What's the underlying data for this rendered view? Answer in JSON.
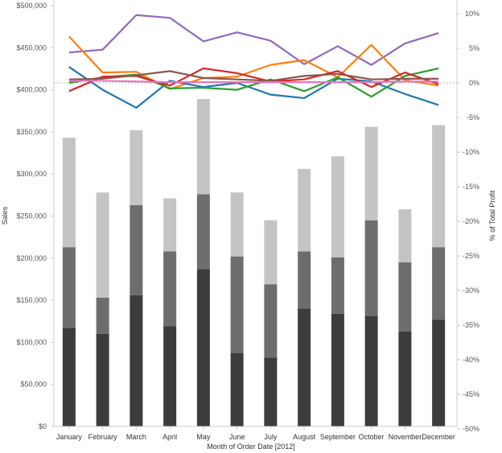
{
  "chart_data": {
    "type": "bar+line",
    "xlabel": "Month of Order Date [2012]",
    "ylabel": "Sales",
    "y2label": "% of Total Profit",
    "categories": [
      "January",
      "February",
      "March",
      "April",
      "May",
      "June",
      "July",
      "August",
      "September",
      "October",
      "November",
      "December"
    ],
    "ylim": [
      0,
      500000
    ],
    "yticks": [
      0,
      50000,
      100000,
      150000,
      200000,
      250000,
      300000,
      350000,
      400000,
      450000,
      500000
    ],
    "ytick_labels": [
      "$0",
      "$50,000",
      "$100,000",
      "$150,000",
      "$200,000",
      "$250,000",
      "$300,000",
      "$350,000",
      "$400,000",
      "$450,000",
      "$500,000"
    ],
    "y2lim": [
      -50,
      10
    ],
    "y2ticks": [
      10,
      5,
      0,
      -5,
      -10,
      -15,
      -20,
      -25,
      -30,
      -35,
      -40,
      -45,
      -50
    ],
    "y2tick_labels": [
      "10%",
      "5%",
      "0%",
      "-5%",
      "-10%",
      "-15%",
      "-20%",
      "-25%",
      "-30%",
      "-35%",
      "-40%",
      "-45%",
      "-50%"
    ],
    "grid": false,
    "bar_series": [
      {
        "color": "#3c3c3c",
        "values": [
          117000,
          110000,
          156000,
          119000,
          187000,
          87000,
          82000,
          140000,
          134000,
          131000,
          113000,
          127000
        ]
      },
      {
        "color": "#6d6d6d",
        "values": [
          96000,
          43000,
          107000,
          89000,
          89000,
          115000,
          87000,
          68000,
          67000,
          114000,
          82000,
          86000
        ]
      },
      {
        "color": "#c4c4c4",
        "values": [
          130000,
          125000,
          89000,
          63000,
          113000,
          76000,
          76000,
          98000,
          120000,
          111000,
          63000,
          145000
        ]
      }
    ],
    "line_series": [
      {
        "color": "#9467bd",
        "values": [
          4.4,
          4.8,
          9.8,
          9.4,
          6.0,
          7.3,
          6.1,
          2.7,
          5.3,
          2.6,
          5.7,
          7.2
        ]
      },
      {
        "color": "#ff7f0e",
        "values": [
          6.7,
          1.5,
          1.6,
          -0.9,
          0.7,
          0.9,
          2.6,
          3.3,
          0.8,
          5.5,
          0.4,
          -0.4
        ]
      },
      {
        "color": "#1f77b4",
        "values": [
          2.3,
          -1.0,
          -3.6,
          0.3,
          -0.6,
          0.0,
          -1.7,
          -2.2,
          0.6,
          0.2,
          -1.6,
          -3.2
        ]
      },
      {
        "color": "#2ca02c",
        "values": [
          0.0,
          0.8,
          1.2,
          -0.8,
          -0.7,
          -1.0,
          0.5,
          -1.2,
          0.8,
          -2.0,
          1.0,
          2.1
        ]
      },
      {
        "color": "#d62728",
        "values": [
          -1.2,
          0.9,
          1.0,
          -0.4,
          2.1,
          1.4,
          0.2,
          0.5,
          1.7,
          -0.6,
          1.5,
          -0.2
        ]
      },
      {
        "color": "#8c564b",
        "values": [
          0.5,
          0.6,
          1.1,
          1.7,
          0.7,
          0.5,
          0.3,
          1.0,
          1.3,
          0.5,
          0.6,
          0.6
        ]
      },
      {
        "color": "#e377c2",
        "values": [
          0.3,
          0.3,
          0.2,
          0.1,
          0.1,
          0.1,
          0.1,
          0.1,
          0.1,
          0.1,
          0.2,
          0.2
        ]
      }
    ]
  }
}
